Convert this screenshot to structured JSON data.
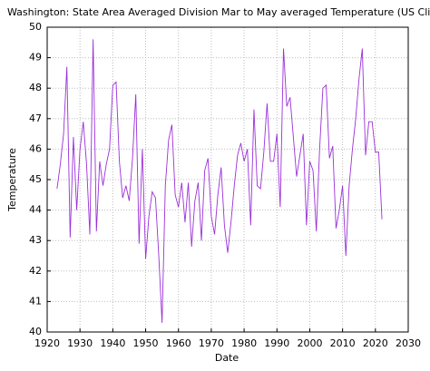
{
  "chart_data": {
    "type": "line",
    "title": "Washington: State Area Averaged Division  Mar to May averaged Temperature  (US Climate Divisi",
    "x_label": "Date",
    "y_label": "Temperature",
    "x": [
      1923,
      1924,
      1925,
      1926,
      1927,
      1928,
      1929,
      1930,
      1931,
      1932,
      1933,
      1934,
      1935,
      1936,
      1937,
      1938,
      1939,
      1940,
      1941,
      1942,
      1943,
      1944,
      1945,
      1946,
      1947,
      1948,
      1949,
      1950,
      1951,
      1952,
      1953,
      1954,
      1955,
      1956,
      1957,
      1958,
      1959,
      1960,
      1961,
      1962,
      1963,
      1964,
      1965,
      1966,
      1967,
      1968,
      1969,
      1970,
      1971,
      1972,
      1973,
      1974,
      1975,
      1976,
      1977,
      1978,
      1979,
      1980,
      1981,
      1982,
      1983,
      1984,
      1985,
      1986,
      1987,
      1988,
      1989,
      1990,
      1991,
      1992,
      1993,
      1994,
      1995,
      1996,
      1997,
      1998,
      1999,
      2000,
      2001,
      2002,
      2003,
      2004,
      2005,
      2006,
      2007,
      2008,
      2009,
      2010,
      2011,
      2012,
      2013,
      2014,
      2015,
      2016,
      2017,
      2018,
      2019,
      2020,
      2021,
      2022
    ],
    "series": [
      {
        "color": "#9b30d9",
        "values": [
          44.7,
          45.5,
          46.5,
          48.7,
          43.1,
          46.4,
          44.0,
          46.0,
          46.9,
          45.5,
          43.2,
          49.6,
          43.3,
          45.6,
          44.8,
          45.5,
          46.0,
          48.1,
          48.2,
          45.6,
          44.4,
          44.8,
          44.3,
          45.7,
          47.8,
          42.9,
          46.0,
          42.4,
          43.8,
          44.6,
          44.4,
          42.5,
          40.3,
          44.8,
          46.3,
          46.8,
          44.5,
          44.1,
          44.9,
          43.6,
          44.9,
          42.8,
          44.3,
          44.9,
          43.0,
          45.3,
          45.7,
          43.8,
          43.2,
          44.5,
          45.4,
          43.5,
          42.6,
          43.6,
          44.8,
          45.8,
          46.2,
          45.6,
          46.0,
          43.5,
          47.3,
          44.8,
          44.7,
          45.9,
          47.5,
          45.6,
          45.6,
          46.5,
          44.1,
          49.3,
          47.4,
          47.7,
          46.4,
          45.1,
          45.8,
          46.5,
          43.5,
          45.6,
          45.3,
          43.3,
          46.0,
          48.0,
          48.1,
          45.7,
          46.1,
          43.4,
          44.0,
          44.8,
          42.5,
          44.8,
          46.0,
          47.0,
          48.3,
          49.3,
          45.8,
          46.9,
          46.9,
          45.9,
          45.9,
          43.7
        ]
      }
    ],
    "xlim": [
      1920,
      2030
    ],
    "xticks": [
      1920,
      1930,
      1940,
      1950,
      1960,
      1970,
      1980,
      1990,
      2000,
      2010,
      2020,
      2030
    ],
    "ylim": [
      40,
      50
    ],
    "yticks": [
      40,
      41,
      42,
      43,
      44,
      45,
      46,
      47,
      48,
      49,
      50
    ],
    "grid": true
  }
}
